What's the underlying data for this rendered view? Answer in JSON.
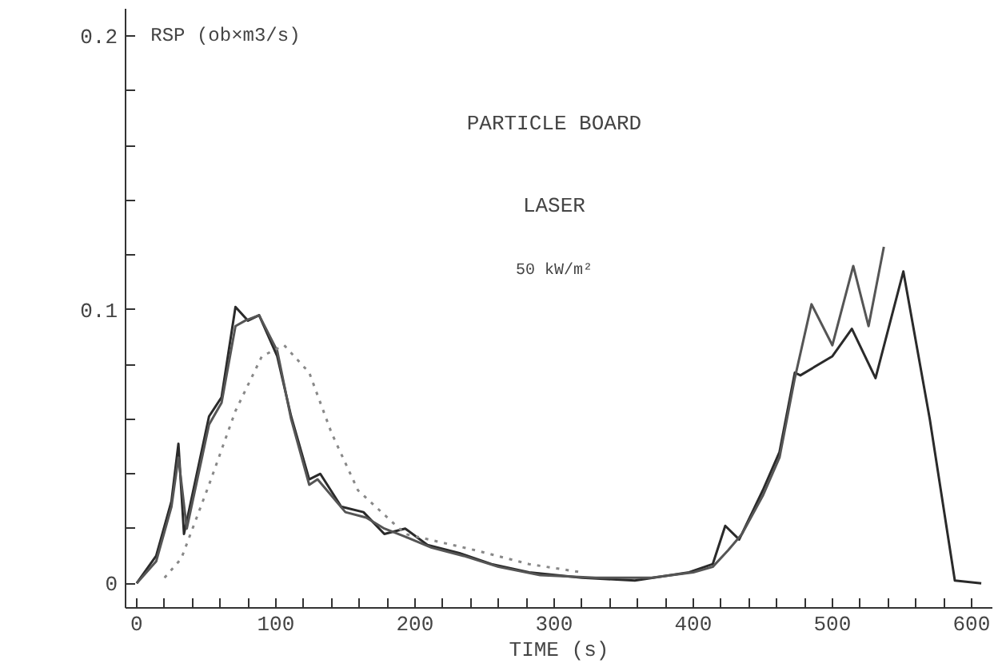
{
  "chart_data": {
    "type": "line",
    "xlabel": "TIME (s)",
    "ylabel": "RSP (ob×m3/s)",
    "annotations": [
      "PARTICLE BOARD",
      "LASER",
      "50 kW/m²"
    ],
    "xlim": [
      -8,
      615
    ],
    "ylim": [
      -0.009,
      0.21
    ],
    "xticks": [
      0,
      {
        "value": 20,
        "label": null
      },
      {
        "value": 40,
        "label": null
      },
      {
        "value": 60,
        "label": null
      },
      {
        "value": 80,
        "label": null
      },
      100,
      {
        "value": 120,
        "label": null
      },
      {
        "value": 140,
        "label": null
      },
      {
        "value": 160,
        "label": null
      },
      {
        "value": 180,
        "label": null
      },
      200,
      {
        "value": 220,
        "label": null
      },
      {
        "value": 240,
        "label": null
      },
      {
        "value": 260,
        "label": null
      },
      {
        "value": 280,
        "label": null
      },
      300,
      {
        "value": 320,
        "label": null
      },
      {
        "value": 340,
        "label": null
      },
      {
        "value": 360,
        "label": null
      },
      {
        "value": 380,
        "label": null
      },
      400,
      {
        "value": 420,
        "label": null
      },
      {
        "value": 440,
        "label": null
      },
      {
        "value": 460,
        "label": null
      },
      {
        "value": 480,
        "label": null
      },
      500,
      {
        "value": 520,
        "label": null
      },
      {
        "value": 540,
        "label": null
      },
      {
        "value": 560,
        "label": null
      },
      {
        "value": 580,
        "label": null
      },
      600
    ],
    "yticks": [
      0,
      {
        "value": 0.02,
        "label": null
      },
      {
        "value": 0.04,
        "label": null
      },
      {
        "value": 0.06,
        "label": null
      },
      {
        "value": 0.08,
        "label": null
      },
      0.1,
      {
        "value": 0.12,
        "label": null
      },
      {
        "value": 0.14,
        "label": null
      },
      {
        "value": 0.16,
        "label": null
      },
      {
        "value": 0.18,
        "label": null
      },
      0.2
    ],
    "grid": false,
    "series": [
      {
        "color": "#2a2a2a",
        "line_style": "solid",
        "x": [
          0,
          14,
          25,
          30,
          34,
          52,
          61,
          71,
          80,
          88,
          101,
          111,
          124,
          132,
          147,
          163,
          178,
          193,
          209,
          232,
          255,
          282,
          320,
          358,
          397,
          414,
          423,
          433,
          450,
          462,
          473,
          477,
          500,
          514,
          531,
          551,
          570,
          588,
          607
        ],
        "values": [
          0,
          0.01,
          0.03,
          0.051,
          0.018,
          0.061,
          0.068,
          0.101,
          0.096,
          0.098,
          0.083,
          0.061,
          0.038,
          0.04,
          0.028,
          0.026,
          0.018,
          0.02,
          0.014,
          0.011,
          0.007,
          0.004,
          0.002,
          0.001,
          0.004,
          0.007,
          0.021,
          0.016,
          0.034,
          0.048,
          0.077,
          0.076,
          0.083,
          0.093,
          0.075,
          0.114,
          0.06,
          0.001,
          0
        ]
      },
      {
        "color": "#555555",
        "line_style": "solid",
        "x": [
          0,
          14,
          25,
          30,
          36,
          52,
          61,
          71,
          78,
          88,
          101,
          111,
          124,
          130,
          150,
          165,
          178,
          193,
          212,
          235,
          260,
          290,
          330,
          370,
          400,
          414,
          425,
          435,
          450,
          462,
          473,
          485,
          500,
          515,
          526,
          537
        ],
        "values": [
          0,
          0.008,
          0.028,
          0.046,
          0.02,
          0.058,
          0.066,
          0.094,
          0.096,
          0.098,
          0.085,
          0.06,
          0.036,
          0.038,
          0.026,
          0.024,
          0.02,
          0.017,
          0.013,
          0.01,
          0.006,
          0.003,
          0.002,
          0.002,
          0.004,
          0.006,
          0.012,
          0.018,
          0.032,
          0.046,
          0.075,
          0.102,
          0.087,
          0.116,
          0.094,
          0.123
        ]
      },
      {
        "color": "#888888",
        "line_style": "dotted",
        "x": [
          20,
          32,
          52,
          71,
          90,
          106,
          124,
          140,
          159,
          193,
          244,
          282,
          320
        ],
        "values": [
          0.002,
          0.009,
          0.036,
          0.063,
          0.083,
          0.087,
          0.077,
          0.055,
          0.034,
          0.018,
          0.012,
          0.007,
          0.004
        ]
      }
    ]
  }
}
